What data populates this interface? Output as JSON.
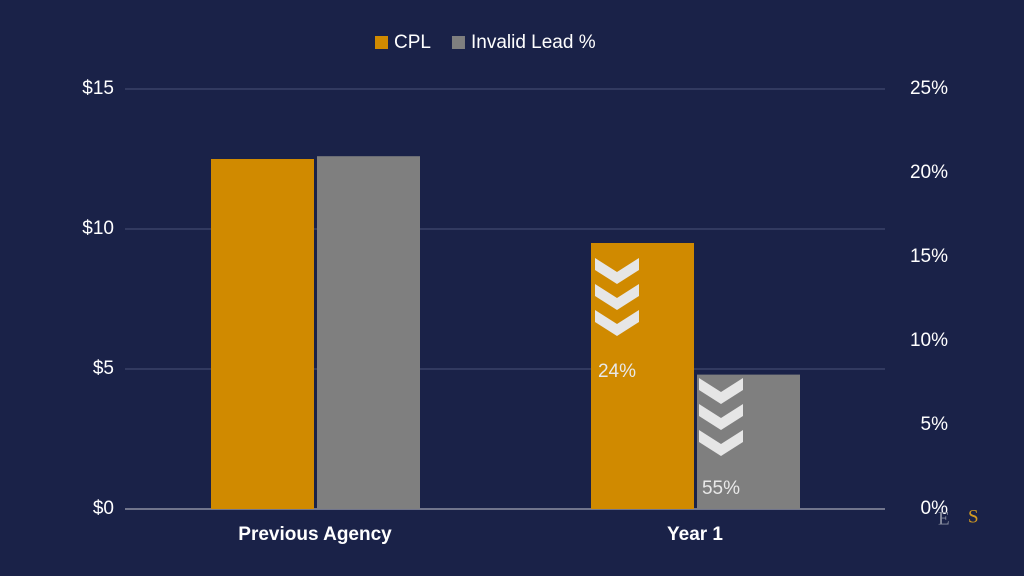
{
  "chart_data": {
    "type": "bar",
    "categories": [
      "Previous Agency",
      "Year 1"
    ],
    "series": [
      {
        "name": "CPL",
        "color": "#d08a00",
        "values": [
          12.5,
          9.5
        ]
      },
      {
        "name": "Invalid Lead %",
        "color": "#7f7f7f",
        "values": [
          21,
          8
        ],
        "axis": "y2"
      }
    ],
    "ylim": [
      0,
      15
    ],
    "yticks": [
      {
        "value": 0,
        "label": "$0"
      },
      {
        "value": 5,
        "label": "$5"
      },
      {
        "value": 10,
        "label": "$10"
      },
      {
        "value": 15,
        "label": "$15"
      }
    ],
    "y2lim": [
      0,
      25
    ],
    "y2ticks": [
      {
        "value": 0,
        "label": "0%"
      },
      {
        "value": 5,
        "label": "5%"
      },
      {
        "value": 10,
        "label": "10%"
      },
      {
        "value": 15,
        "label": "15%"
      },
      {
        "value": 20,
        "label": "20%"
      },
      {
        "value": 25,
        "label": "25%"
      }
    ],
    "grid": true,
    "legend": "top",
    "annotations": [
      "24%",
      "55%"
    ],
    "logo": [
      "E",
      "S"
    ]
  }
}
